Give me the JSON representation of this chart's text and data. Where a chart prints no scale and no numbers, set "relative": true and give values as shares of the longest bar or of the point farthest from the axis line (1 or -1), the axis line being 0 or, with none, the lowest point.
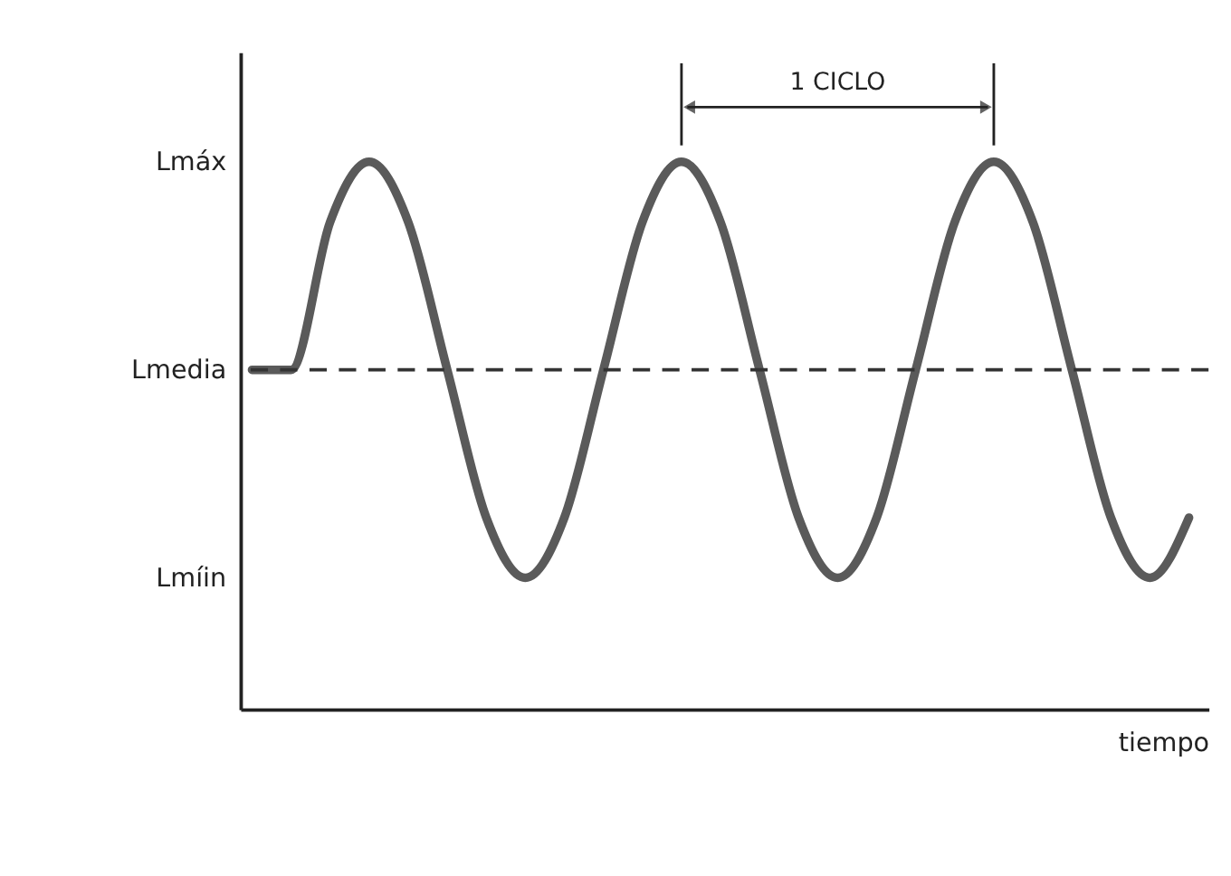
{
  "chart_data": {
    "type": "line",
    "relative": true,
    "categories": [
      null,
      null,
      null,
      null,
      null,
      null,
      null,
      null,
      null,
      null,
      null,
      null,
      null,
      null,
      null,
      null,
      null,
      null,
      null,
      null,
      null,
      null,
      null,
      null,
      null
    ],
    "series": [
      {
        "color": "#5a5a5a",
        "values": [
          0.62,
          0.62,
          0.89,
          1,
          0.89,
          0.62,
          0.35,
          0.24,
          0.35,
          0.62,
          0.89,
          1,
          0.89,
          0.62,
          0.35,
          0.24,
          0.35,
          0.62,
          0.89,
          1,
          0.89,
          0.62,
          0.35,
          0.24,
          0.35
        ]
      }
    ],
    "xlabel": "tiempo",
    "ref_lines": [
      {
        "axis": "y",
        "value": 0.62,
        "color": "#333333",
        "line_style": "dashed"
      }
    ],
    "annotations": [
      "1 CICLO",
      "Lmáx",
      "Lmedia",
      "Lmíin"
    ],
    "grid": false,
    "marker": "none",
    "line_style": "solid"
  }
}
